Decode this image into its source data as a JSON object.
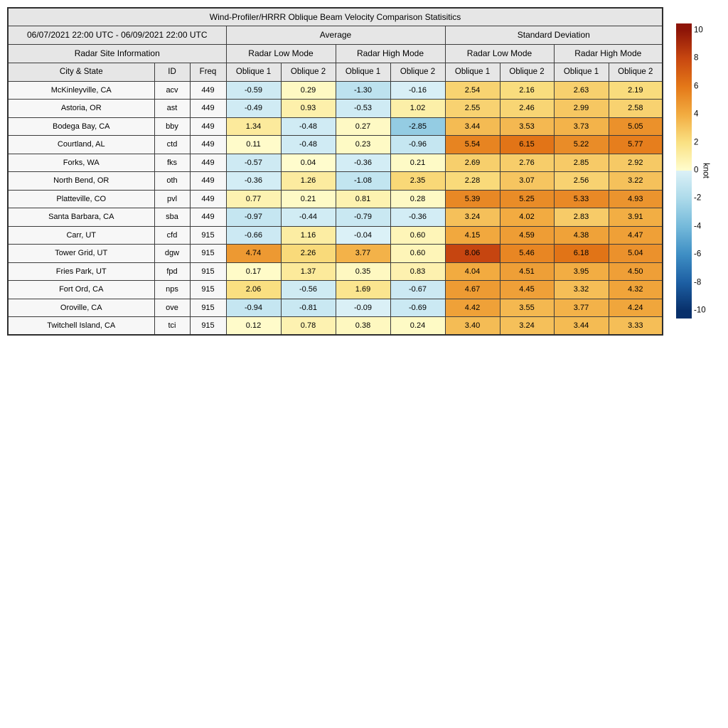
{
  "title": "Wind-Profiler/HRRR Oblique Beam Velocity Comparison Statisitics",
  "header": {
    "date_range": "06/07/2021 22:00 UTC - 06/09/2021 22:00 UTC",
    "group_average": "Average",
    "group_std": "Standard Deviation",
    "site_info": "Radar Site Information",
    "mode_low": "Radar Low Mode",
    "mode_high": "Radar High Mode",
    "col_city": "City & State",
    "col_id": "ID",
    "col_freq": "Freq",
    "oblique1": "Oblique 1",
    "oblique2": "Oblique 2"
  },
  "colors": {
    "header_bg": "#e6e6e6",
    "site_cell_bg": "#f7f7f7",
    "border": "#3c3c3c"
  },
  "chart_data": {
    "type": "table",
    "description": "Heatmap-colored statistics table: average and standard deviation of wind-profiler vs HRRR oblique beam velocity for Radar Low/High Mode, Oblique beams 1 and 2",
    "value_columns": [
      "Average Low Oblique 1",
      "Average Low Oblique 2",
      "Average High Oblique 1",
      "Average High Oblique 2",
      "Std Low Oblique 1",
      "Std Low Oblique 2",
      "Std High Oblique 1",
      "Std High Oblique 2"
    ],
    "rows": [
      {
        "city": "McKinleyville, CA",
        "id": "acv",
        "freq": 449,
        "avg": [
          -0.59,
          0.29,
          -1.3,
          -0.16
        ],
        "std": [
          2.54,
          2.16,
          2.63,
          2.19
        ]
      },
      {
        "city": "Astoria, OR",
        "id": "ast",
        "freq": 449,
        "avg": [
          -0.49,
          0.93,
          -0.53,
          1.02
        ],
        "std": [
          2.55,
          2.46,
          2.99,
          2.58
        ]
      },
      {
        "city": "Bodega Bay, CA",
        "id": "bby",
        "freq": 449,
        "avg": [
          1.34,
          -0.48,
          0.27,
          -2.85
        ],
        "std": [
          3.44,
          3.53,
          3.73,
          5.05
        ]
      },
      {
        "city": "Courtland, AL",
        "id": "ctd",
        "freq": 449,
        "avg": [
          0.11,
          -0.48,
          0.23,
          -0.96
        ],
        "std": [
          5.54,
          6.15,
          5.22,
          5.77
        ]
      },
      {
        "city": "Forks, WA",
        "id": "fks",
        "freq": 449,
        "avg": [
          -0.57,
          0.04,
          -0.36,
          0.21
        ],
        "std": [
          2.69,
          2.76,
          2.85,
          2.92
        ]
      },
      {
        "city": "North Bend, OR",
        "id": "oth",
        "freq": 449,
        "avg": [
          -0.36,
          1.26,
          -1.08,
          2.35
        ],
        "std": [
          2.28,
          3.07,
          2.56,
          3.22
        ]
      },
      {
        "city": "Platteville, CO",
        "id": "pvl",
        "freq": 449,
        "avg": [
          0.77,
          0.21,
          0.81,
          0.28
        ],
        "std": [
          5.39,
          5.25,
          5.33,
          4.93
        ]
      },
      {
        "city": "Santa Barbara, CA",
        "id": "sba",
        "freq": 449,
        "avg": [
          -0.97,
          -0.44,
          -0.79,
          -0.36
        ],
        "std": [
          3.24,
          4.02,
          2.83,
          3.91
        ]
      },
      {
        "city": "Carr, UT",
        "id": "cfd",
        "freq": 915,
        "avg": [
          -0.66,
          1.16,
          -0.04,
          0.6
        ],
        "std": [
          4.15,
          4.59,
          4.38,
          4.47
        ]
      },
      {
        "city": "Tower Grid, UT",
        "id": "dgw",
        "freq": 915,
        "avg": [
          4.74,
          2.26,
          3.77,
          0.6
        ],
        "std": [
          8.06,
          5.46,
          6.18,
          5.04
        ]
      },
      {
        "city": "Fries Park, UT",
        "id": "fpd",
        "freq": 915,
        "avg": [
          0.17,
          1.37,
          0.35,
          0.83
        ],
        "std": [
          4.04,
          4.51,
          3.95,
          4.5
        ]
      },
      {
        "city": "Fort Ord, CA",
        "id": "nps",
        "freq": 915,
        "avg": [
          2.06,
          -0.56,
          1.69,
          -0.67
        ],
        "std": [
          4.67,
          4.45,
          3.32,
          4.32
        ]
      },
      {
        "city": "Oroville, CA",
        "id": "ove",
        "freq": 915,
        "avg": [
          -0.94,
          -0.81,
          -0.09,
          -0.69
        ],
        "std": [
          4.42,
          3.55,
          3.77,
          4.24
        ]
      },
      {
        "city": "Twitchell Island, CA",
        "id": "tci",
        "freq": 915,
        "avg": [
          0.12,
          0.78,
          0.38,
          0.24
        ],
        "std": [
          3.4,
          3.24,
          3.44,
          3.33
        ]
      }
    ],
    "colorbar": {
      "label": "knot",
      "ticks": [
        10,
        8,
        6,
        4,
        2,
        0,
        -2,
        -4,
        -6,
        -8,
        -10
      ],
      "value_range": [
        -10,
        10
      ],
      "colormap": {
        "negative": [
          [
            -10,
            "#08306B"
          ],
          [
            -8,
            "#1D5FA3"
          ],
          [
            -6,
            "#3E8EC4"
          ],
          [
            -4,
            "#74B9DA"
          ],
          [
            -2,
            "#ACDAEA"
          ],
          [
            0,
            "#DCF1F7"
          ]
        ],
        "positive": [
          [
            0,
            "#FFFDCE"
          ],
          [
            2,
            "#FAE183"
          ],
          [
            4,
            "#F2AC41"
          ],
          [
            6,
            "#E47818"
          ],
          [
            8,
            "#C84710"
          ],
          [
            10,
            "#8E1508"
          ]
        ]
      }
    }
  }
}
